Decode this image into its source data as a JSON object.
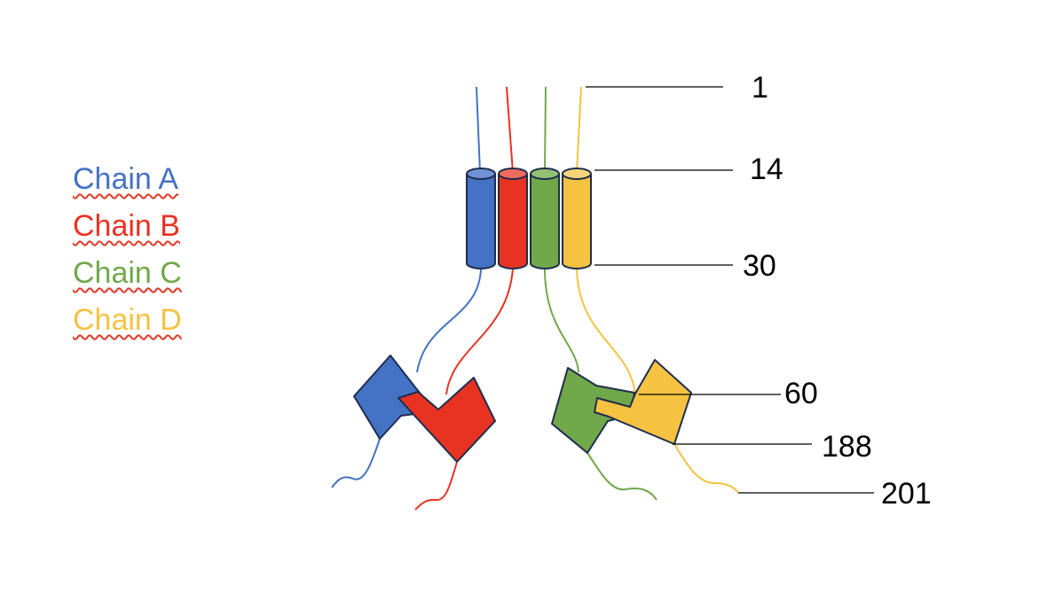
{
  "legend": {
    "chains": [
      {
        "label": "Chain A",
        "color": "#4472c4"
      },
      {
        "label": "Chain B",
        "color": "#e83323"
      },
      {
        "label": "Chain C",
        "color": "#70a84a"
      },
      {
        "label": "Chain D",
        "color": "#f5c242"
      }
    ]
  },
  "residues": [
    {
      "label": "1"
    },
    {
      "label": "14"
    },
    {
      "label": "30"
    },
    {
      "label": "60"
    },
    {
      "label": "188"
    },
    {
      "label": "201"
    }
  ],
  "colors": {
    "chain_a": "#4472c4",
    "chain_b": "#e83323",
    "chain_c": "#70a84a",
    "chain_d": "#f5c242",
    "outline": "#1f2d4d"
  }
}
